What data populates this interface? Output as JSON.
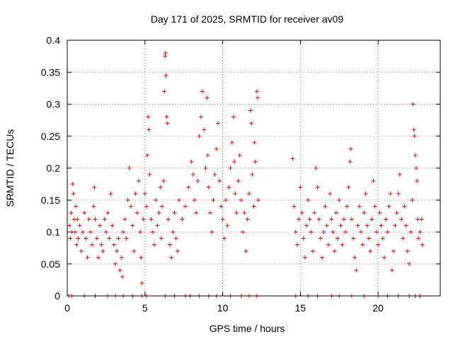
{
  "chart_data": {
    "type": "scatter",
    "title": "Day 171 of 2025, SRMTID for receiver av09",
    "xlabel": "GPS time / hours",
    "ylabel": "SRMTID / TECUs",
    "xlim": [
      0,
      24
    ],
    "ylim": [
      0,
      0.4
    ],
    "x_ticks": [
      0,
      5,
      10,
      15,
      20
    ],
    "x_tick_labels": [
      "0",
      "5",
      "10",
      "15",
      "20"
    ],
    "y_ticks": [
      0,
      0.05,
      0.1,
      0.15,
      0.2,
      0.25,
      0.3,
      0.35,
      0.4
    ],
    "y_tick_labels": [
      "0",
      "0.05",
      "0.1",
      "0.15",
      "0.2",
      "0.25",
      "0.3",
      "0.35",
      "0.4"
    ],
    "grid": true,
    "marker": "plus",
    "series_color": "#ff0000",
    "series": [
      {
        "name": "SRMTID",
        "points": [
          [
            0.15,
            0.11
          ],
          [
            0.2,
            0.09
          ],
          [
            0.25,
            0.13
          ],
          [
            0.3,
            0.1
          ],
          [
            0.35,
            0.175
          ],
          [
            0.4,
            0.16
          ],
          [
            0.45,
            0.12
          ],
          [
            0.5,
            0.1
          ],
          [
            0.55,
            0.14
          ],
          [
            0.6,
            0.08
          ],
          [
            0.65,
            0.12
          ],
          [
            0.7,
            0.09
          ],
          [
            0.8,
            0.11
          ],
          [
            0.9,
            0.07
          ],
          [
            1.0,
            0.1
          ],
          [
            1.1,
            0.13
          ],
          [
            1.2,
            0.09
          ],
          [
            1.3,
            0.06
          ],
          [
            1.4,
            0.12
          ],
          [
            1.5,
            0.1
          ],
          [
            1.6,
            0.08
          ],
          [
            1.7,
            0.14
          ],
          [
            1.75,
            0.17
          ],
          [
            1.8,
            0.12
          ],
          [
            1.9,
            0.09
          ],
          [
            2.0,
            0.06
          ],
          [
            2.1,
            0.11
          ],
          [
            2.2,
            0.08
          ],
          [
            2.3,
            0.07
          ],
          [
            2.4,
            0.12
          ],
          [
            2.5,
            0.1
          ],
          [
            2.6,
            0.13
          ],
          [
            2.7,
            0.09
          ],
          [
            2.8,
            0.16
          ],
          [
            2.9,
            0.11
          ],
          [
            3.0,
            0.08
          ],
          [
            3.1,
            0.05
          ],
          [
            3.2,
            0.07
          ],
          [
            3.3,
            0.09
          ],
          [
            3.4,
            0.04
          ],
          [
            3.5,
            0.06
          ],
          [
            3.55,
            0.03
          ],
          [
            3.6,
            0.1
          ],
          [
            3.7,
            0.12
          ],
          [
            3.8,
            0.09
          ],
          [
            3.9,
            0.15
          ],
          [
            4.0,
            0.2
          ],
          [
            4.1,
            0.14
          ],
          [
            4.2,
            0.11
          ],
          [
            4.3,
            0.07
          ],
          [
            4.4,
            0.16
          ],
          [
            4.5,
            0.13
          ],
          [
            4.6,
            0.18
          ],
          [
            4.7,
            0.1
          ],
          [
            4.75,
            0.06
          ],
          [
            4.8,
            0.02
          ],
          [
            4.9,
            0.12
          ],
          [
            5.0,
            0.16
          ],
          [
            5.1,
            0.14
          ],
          [
            5.15,
            0.22
          ],
          [
            5.2,
            0.28
          ],
          [
            5.25,
            0.26
          ],
          [
            5.3,
            0.19
          ],
          [
            5.4,
            0.12
          ],
          [
            5.5,
            0.1
          ],
          [
            5.6,
            0.08
          ],
          [
            5.7,
            0.15
          ],
          [
            5.8,
            0.11
          ],
          [
            5.9,
            0.13
          ],
          [
            6.0,
            0.17
          ],
          [
            6.05,
            0.09
          ],
          [
            6.1,
            0.14
          ],
          [
            6.2,
            0.18
          ],
          [
            6.25,
            0.32
          ],
          [
            6.3,
            0.375
          ],
          [
            6.32,
            0.38
          ],
          [
            6.35,
            0.345
          ],
          [
            6.4,
            0.28
          ],
          [
            6.45,
            0.27
          ],
          [
            6.5,
            0.12
          ],
          [
            6.6,
            0.08
          ],
          [
            6.7,
            0.06
          ],
          [
            6.8,
            0.1
          ],
          [
            6.9,
            0.13
          ],
          [
            7.0,
            0.09
          ],
          [
            7.1,
            0.07
          ],
          [
            7.2,
            0.15
          ],
          [
            7.4,
            0.12
          ],
          [
            7.6,
            0.14
          ],
          [
            7.8,
            0.17
          ],
          [
            8.0,
            0.21
          ],
          [
            8.1,
            0.19
          ],
          [
            8.2,
            0.15
          ],
          [
            8.3,
            0.13
          ],
          [
            8.4,
            0.18
          ],
          [
            8.5,
            0.25
          ],
          [
            8.6,
            0.28
          ],
          [
            8.7,
            0.32
          ],
          [
            8.8,
            0.26
          ],
          [
            8.9,
            0.2
          ],
          [
            9.0,
            0.31
          ],
          [
            9.05,
            0.22
          ],
          [
            9.1,
            0.17
          ],
          [
            9.2,
            0.13
          ],
          [
            9.3,
            0.1
          ],
          [
            9.4,
            0.15
          ],
          [
            9.5,
            0.19
          ],
          [
            9.6,
            0.23
          ],
          [
            9.7,
            0.27
          ],
          [
            9.8,
            0.18
          ],
          [
            9.9,
            0.14
          ],
          [
            10.0,
            0.12
          ],
          [
            10.1,
            0.09
          ],
          [
            10.2,
            0.15
          ],
          [
            10.3,
            0.11
          ],
          [
            10.4,
            0.17
          ],
          [
            10.5,
            0.2
          ],
          [
            10.6,
            0.24
          ],
          [
            10.7,
            0.28
          ],
          [
            10.75,
            0.21
          ],
          [
            10.8,
            0.16
          ],
          [
            10.9,
            0.13
          ],
          [
            11.0,
            0.18
          ],
          [
            11.1,
            0.22
          ],
          [
            11.2,
            0.15
          ],
          [
            11.3,
            0.1
          ],
          [
            11.4,
            0.13
          ],
          [
            11.5,
            0.07
          ],
          [
            11.6,
            0.12
          ],
          [
            11.7,
            0.16
          ],
          [
            11.8,
            0.29
          ],
          [
            11.85,
            0.27
          ],
          [
            11.9,
            0.19
          ],
          [
            12.0,
            0.14
          ],
          [
            12.05,
            0.24
          ],
          [
            12.1,
            0.21
          ],
          [
            12.2,
            0.32
          ],
          [
            12.25,
            0.31
          ],
          [
            12.3,
            0.15
          ],
          [
            14.5,
            0.215
          ],
          [
            14.6,
            0.14
          ],
          [
            14.7,
            0.1
          ],
          [
            14.8,
            0.08
          ],
          [
            14.9,
            0.12
          ],
          [
            15.0,
            0.17
          ],
          [
            15.1,
            0.13
          ],
          [
            15.2,
            0.09
          ],
          [
            15.3,
            0.06
          ],
          [
            15.4,
            0.11
          ],
          [
            15.5,
            0.15
          ],
          [
            15.6,
            0.12
          ],
          [
            15.7,
            0.1
          ],
          [
            15.8,
            0.07
          ],
          [
            15.9,
            0.13
          ],
          [
            16.0,
            0.2
          ],
          [
            16.1,
            0.17
          ],
          [
            16.2,
            0.12
          ],
          [
            16.3,
            0.09
          ],
          [
            16.4,
            0.06
          ],
          [
            16.5,
            0.1
          ],
          [
            16.6,
            0.14
          ],
          [
            16.7,
            0.11
          ],
          [
            16.8,
            0.08
          ],
          [
            16.9,
            0.16
          ],
          [
            17.0,
            0.12
          ],
          [
            17.1,
            0.1
          ],
          [
            17.2,
            0.07
          ],
          [
            17.3,
            0.13
          ],
          [
            17.4,
            0.09
          ],
          [
            17.5,
            0.15
          ],
          [
            17.6,
            0.11
          ],
          [
            17.7,
            0.08
          ],
          [
            17.8,
            0.12
          ],
          [
            17.9,
            0.1
          ],
          [
            18.0,
            0.14
          ],
          [
            18.1,
            0.17
          ],
          [
            18.2,
            0.21
          ],
          [
            18.25,
            0.23
          ],
          [
            18.3,
            0.12
          ],
          [
            18.4,
            0.09
          ],
          [
            18.5,
            0.06
          ],
          [
            18.6,
            0.04
          ],
          [
            18.7,
            0.11
          ],
          [
            18.8,
            0.14
          ],
          [
            18.9,
            0.1
          ],
          [
            19.0,
            0.08
          ],
          [
            19.1,
            0.13
          ],
          [
            19.2,
            0.16
          ],
          [
            19.3,
            0.11
          ],
          [
            19.4,
            0.09
          ],
          [
            19.5,
            0.07
          ],
          [
            19.6,
            0.12
          ],
          [
            19.7,
            0.18
          ],
          [
            19.8,
            0.14
          ],
          [
            19.9,
            0.1
          ],
          [
            20.0,
            0.08
          ],
          [
            20.1,
            0.13
          ],
          [
            20.2,
            0.11
          ],
          [
            20.3,
            0.09
          ],
          [
            20.4,
            0.06
          ],
          [
            20.5,
            0.12
          ],
          [
            20.6,
            0.1
          ],
          [
            20.7,
            0.14
          ],
          [
            20.8,
            0.16
          ],
          [
            20.9,
            0.04
          ],
          [
            21.0,
            0.07
          ],
          [
            21.1,
            0.11
          ],
          [
            21.2,
            0.13
          ],
          [
            21.3,
            0.16
          ],
          [
            21.4,
            0.19
          ],
          [
            21.5,
            0.12
          ],
          [
            21.6,
            0.09
          ],
          [
            21.7,
            0.14
          ],
          [
            21.8,
            0.11
          ],
          [
            21.9,
            0.07
          ],
          [
            22.0,
            0.05
          ],
          [
            22.1,
            0.1
          ],
          [
            22.2,
            0.15
          ],
          [
            22.25,
            0.3
          ],
          [
            22.3,
            0.26
          ],
          [
            22.35,
            0.25
          ],
          [
            22.4,
            0.22
          ],
          [
            22.45,
            0.2
          ],
          [
            22.5,
            0.18
          ],
          [
            22.55,
            0.12
          ],
          [
            22.6,
            0.09
          ],
          [
            22.7,
            0.1
          ],
          [
            22.8,
            0.12
          ],
          [
            22.85,
            0.08
          ],
          [
            0.1,
            0
          ],
          [
            0.3,
            0
          ],
          [
            1.1,
            0
          ],
          [
            1.8,
            0
          ],
          [
            2.6,
            0
          ],
          [
            3.1,
            0
          ],
          [
            3.6,
            0
          ],
          [
            4.2,
            0
          ],
          [
            4.8,
            0
          ],
          [
            5.1,
            0
          ],
          [
            6.3,
            0
          ],
          [
            6.9,
            0
          ],
          [
            7.6,
            0
          ],
          [
            7.9,
            0
          ],
          [
            8.5,
            0
          ],
          [
            9.1,
            0
          ],
          [
            9.6,
            0
          ],
          [
            10.5,
            0
          ],
          [
            11.2,
            0
          ],
          [
            11.7,
            0
          ],
          [
            12.2,
            0
          ],
          [
            14.7,
            0
          ],
          [
            15.5,
            0
          ],
          [
            16.1,
            0
          ],
          [
            17.0,
            0
          ],
          [
            17.5,
            0
          ],
          [
            18.3,
            0
          ],
          [
            19.1,
            0
          ],
          [
            20.0,
            0
          ],
          [
            20.6,
            0
          ],
          [
            21.3,
            0
          ],
          [
            22.0,
            0
          ],
          [
            22.4,
            0
          ],
          [
            22.7,
            0
          ]
        ]
      }
    ]
  }
}
